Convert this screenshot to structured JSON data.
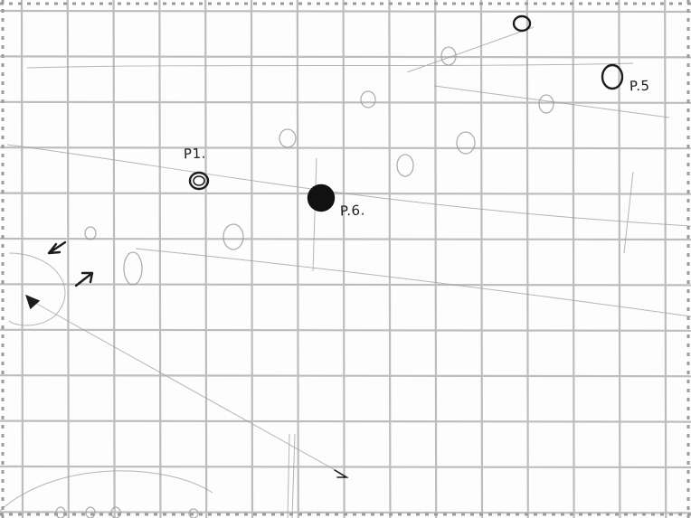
{
  "sheet": {
    "grid_color": "#bdbdbd",
    "pencil_color": "#8a8a8a",
    "ink_color": "#1c1c1c"
  },
  "points": [
    {
      "id": "p1",
      "label": "P1.",
      "style": "ring"
    },
    {
      "id": "p5",
      "label": "P.5",
      "style": "ring"
    },
    {
      "id": "p6",
      "label": "P.6.",
      "style": "filled"
    }
  ]
}
